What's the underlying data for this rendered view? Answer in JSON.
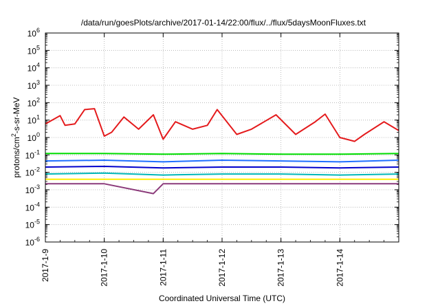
{
  "chart_data": {
    "type": "line",
    "title": "/data/run/goesPlots/archive/2017-01-14/22:00/flux/../flux/5daysMoonFluxes.txt",
    "xlabel": "Coordinated Universal Time (UTC)",
    "ylabel_main": "protons/cm",
    "ylabel_sup": "2",
    "ylabel_rest": "-s-sr-MeV",
    "yscale": "log",
    "xlim": [
      "2017-01-09T00:00",
      "2017-01-15T00:00"
    ],
    "ylim": [
      1e-06,
      1000000.0
    ],
    "grid": true,
    "x_tick_labels": [
      "2017-1-9",
      "2017-1-10",
      "2017-1-11",
      "2017-1-12",
      "2017-1-13",
      "2017-1-14"
    ],
    "y_tick_labels": [
      {
        "base": "10",
        "exp": "-6"
      },
      {
        "base": "10",
        "exp": "-5"
      },
      {
        "base": "10",
        "exp": "-4"
      },
      {
        "base": "10",
        "exp": "-3"
      },
      {
        "base": "10",
        "exp": "-2"
      },
      {
        "base": "10",
        "exp": "-1"
      },
      {
        "base": "10",
        "exp": "0"
      },
      {
        "base": "10",
        "exp": "1"
      },
      {
        "base": "10",
        "exp": "2"
      },
      {
        "base": "10",
        "exp": "3"
      },
      {
        "base": "10",
        "exp": "4"
      },
      {
        "base": "10",
        "exp": "5"
      },
      {
        "base": "10",
        "exp": "6"
      }
    ],
    "series": [
      {
        "color": "#e41a1c",
        "x": [
          "2017-01-09T00:00",
          "2017-01-09T06:00",
          "2017-01-09T08:00",
          "2017-01-09T12:00",
          "2017-01-09T16:00",
          "2017-01-09T20:00",
          "2017-01-10T00:00",
          "2017-01-10T03:00",
          "2017-01-10T08:00",
          "2017-01-10T14:00",
          "2017-01-10T20:00",
          "2017-01-11T00:00",
          "2017-01-11T05:00",
          "2017-01-11T12:00",
          "2017-01-11T18:00",
          "2017-01-11T22:00",
          "2017-01-12T06:00",
          "2017-01-12T12:00",
          "2017-01-12T22:00",
          "2017-01-13T06:00",
          "2017-01-13T14:00",
          "2017-01-13T18:00",
          "2017-01-14T00:00",
          "2017-01-14T06:00",
          "2017-01-14T10:00",
          "2017-01-14T18:00",
          "2017-01-15T00:00"
        ],
        "y": [
          6,
          18,
          5,
          6,
          40,
          45,
          1.2,
          2,
          15,
          3,
          20,
          0.8,
          8,
          3,
          5,
          40,
          1.5,
          3,
          20,
          1.5,
          8,
          22,
          1.0,
          0.6,
          1.5,
          8,
          2.5
        ]
      },
      {
        "color": "#00dd00",
        "x": [
          "2017-01-09T00:00",
          "2017-01-10T00:00",
          "2017-01-11T00:00",
          "2017-01-12T00:00",
          "2017-01-13T00:00",
          "2017-01-14T00:00",
          "2017-01-15T00:00"
        ],
        "y": [
          0.12,
          0.12,
          0.11,
          0.12,
          0.11,
          0.11,
          0.12
        ]
      },
      {
        "color": "#1f6fff",
        "x": [
          "2017-01-09T00:00",
          "2017-01-10T00:00",
          "2017-01-11T00:00",
          "2017-01-12T00:00",
          "2017-01-13T00:00",
          "2017-01-14T00:00",
          "2017-01-15T00:00"
        ],
        "y": [
          0.045,
          0.05,
          0.04,
          0.05,
          0.045,
          0.04,
          0.05
        ]
      },
      {
        "color": "#0000cc",
        "x": [
          "2017-01-09T00:00",
          "2017-01-10T00:00",
          "2017-01-11T00:00",
          "2017-01-12T00:00",
          "2017-01-13T00:00",
          "2017-01-14T00:00",
          "2017-01-15T00:00"
        ],
        "y": [
          0.02,
          0.022,
          0.018,
          0.02,
          0.02,
          0.018,
          0.02
        ]
      },
      {
        "color": "#00b7b7",
        "x": [
          "2017-01-09T00:00",
          "2017-01-10T00:00",
          "2017-01-11T00:00",
          "2017-01-12T00:00",
          "2017-01-13T00:00",
          "2017-01-14T00:00",
          "2017-01-15T00:00"
        ],
        "y": [
          0.008,
          0.009,
          0.007,
          0.008,
          0.008,
          0.007,
          0.008
        ]
      },
      {
        "color": "#ffee00",
        "x": [
          "2017-01-09T00:00",
          "2017-01-10T00:00",
          "2017-01-11T00:00",
          "2017-01-12T00:00",
          "2017-01-13T00:00",
          "2017-01-14T00:00",
          "2017-01-15T00:00"
        ],
        "y": [
          0.004,
          0.004,
          0.004,
          0.004,
          0.004,
          0.004,
          0.004
        ]
      },
      {
        "color": "#8b3a7a",
        "x": [
          "2017-01-09T00:00",
          "2017-01-10T00:00",
          "2017-01-10T20:00",
          "2017-01-11T00:00",
          "2017-01-12T00:00",
          "2017-01-13T00:00",
          "2017-01-14T00:00",
          "2017-01-15T00:00"
        ],
        "y": [
          0.0022,
          0.0022,
          0.0006,
          0.0022,
          0.0022,
          0.0022,
          0.0022,
          0.0022
        ]
      }
    ]
  }
}
